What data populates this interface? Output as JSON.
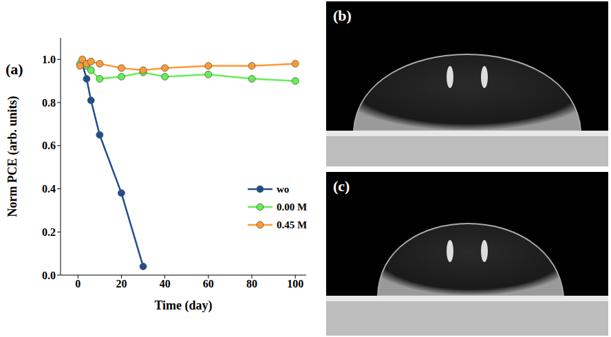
{
  "chart_data": {
    "type": "line",
    "panel_label": "(a)",
    "x_label": "Time (day)",
    "y_label": "Norm PCE (arb. units)",
    "xlim": [
      -8,
      105
    ],
    "xticks": [
      0,
      20,
      40,
      60,
      80,
      100
    ],
    "ylim": [
      0,
      1.1
    ],
    "yticks": [
      {
        "value": 0,
        "label": "0.0"
      },
      {
        "value": 0.2,
        "label": "0.2"
      },
      {
        "value": 0.4,
        "label": "0.4"
      },
      {
        "value": 0.6,
        "label": "0.6"
      },
      {
        "value": 0.8,
        "label": "0.8"
      },
      {
        "value": 1.0,
        "label": "1.0"
      }
    ],
    "grid": false,
    "legend": "lower right",
    "series": [
      {
        "name": "wo",
        "color": "#1f4e8c",
        "marker": "circle",
        "x": [
          2,
          4,
          6,
          10,
          20,
          30
        ],
        "values": [
          0.98,
          0.91,
          0.81,
          0.65,
          0.38,
          0.04
        ]
      },
      {
        "name": "0.00 M",
        "color": "#66ee55",
        "marker": "circle",
        "x": [
          1,
          4,
          6,
          10,
          20,
          30,
          40,
          60,
          80,
          100
        ],
        "values": [
          0.98,
          0.97,
          0.95,
          0.91,
          0.92,
          0.94,
          0.92,
          0.93,
          0.91,
          0.9
        ]
      },
      {
        "name": "0.45 M",
        "color": "#ff9a33",
        "marker": "circle",
        "x": [
          1,
          2,
          4,
          6,
          10,
          20,
          30,
          40,
          60,
          80,
          100
        ],
        "values": [
          0.97,
          1.0,
          0.98,
          0.99,
          0.98,
          0.96,
          0.95,
          0.96,
          0.97,
          0.97,
          0.98
        ]
      }
    ]
  },
  "images": [
    {
      "label": "(b)"
    },
    {
      "label": "(c)"
    }
  ]
}
